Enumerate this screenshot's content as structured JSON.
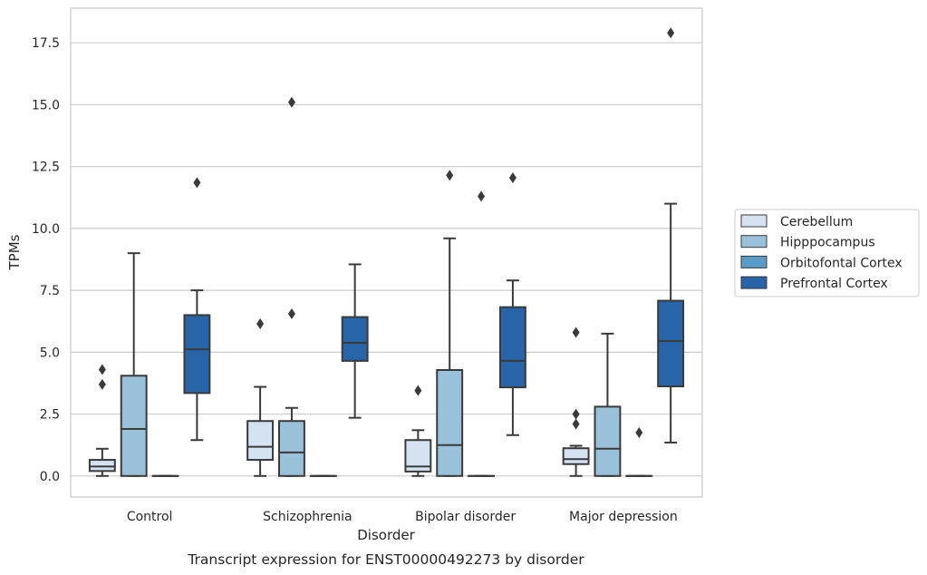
{
  "chart_data": {
    "type": "boxplot",
    "xlabel": "Disorder",
    "ylabel": "TPMs",
    "caption": "Transcript expression for ENST00000492273 by disorder",
    "ylim": [
      -0.85,
      18.9
    ],
    "yticks": [
      0.0,
      2.5,
      5.0,
      7.5,
      10.0,
      12.5,
      15.0,
      17.5
    ],
    "ytick_labels": [
      "0.0",
      "2.5",
      "5.0",
      "7.5",
      "10.0",
      "12.5",
      "15.0",
      "17.5"
    ],
    "grid": "horizontal",
    "legend_placement": "right, outside plot",
    "categories": [
      "Control",
      "Schizophrenia",
      "Bipolar disorder",
      "Major depression"
    ],
    "series": [
      {
        "name": "Cerebellum",
        "color": "#d5e2f1",
        "boxes": [
          {
            "whisker_low": 0.0,
            "q1": 0.2,
            "median": 0.38,
            "q3": 0.65,
            "whisker_high": 1.1,
            "outliers": [
              3.7,
              4.3
            ]
          },
          {
            "whisker_low": 0.0,
            "q1": 0.65,
            "median": 1.18,
            "q3": 2.22,
            "whisker_high": 3.6,
            "outliers": [
              6.15
            ]
          },
          {
            "whisker_low": 0.0,
            "q1": 0.18,
            "median": 0.38,
            "q3": 1.45,
            "whisker_high": 1.85,
            "outliers": [
              3.45
            ]
          },
          {
            "whisker_low": 0.0,
            "q1": 0.48,
            "median": 0.68,
            "q3": 1.12,
            "whisker_high": 1.22,
            "outliers": [
              2.1,
              2.5,
              5.8
            ]
          }
        ]
      },
      {
        "name": "Hipppocampus",
        "color": "#9ac1da",
        "boxes": [
          {
            "whisker_low": 0.0,
            "q1": 0.0,
            "median": 1.9,
            "q3": 4.05,
            "whisker_high": 9.0,
            "outliers": []
          },
          {
            "whisker_low": 0.0,
            "q1": 0.0,
            "median": 0.95,
            "q3": 2.22,
            "whisker_high": 2.75,
            "outliers": [
              6.55,
              15.1
            ]
          },
          {
            "whisker_low": 0.0,
            "q1": 0.0,
            "median": 1.25,
            "q3": 4.28,
            "whisker_high": 9.6,
            "outliers": [
              12.15
            ]
          },
          {
            "whisker_low": 0.0,
            "q1": 0.0,
            "median": 1.1,
            "q3": 2.8,
            "whisker_high": 5.75,
            "outliers": []
          }
        ]
      },
      {
        "name": "Orbitofontal Cortex",
        "color": "#5a9bc7",
        "boxes": [
          {
            "whisker_low": 0.0,
            "q1": 0.0,
            "median": 0.0,
            "q3": 0.0,
            "whisker_high": 0.0,
            "outliers": []
          },
          {
            "whisker_low": 0.0,
            "q1": 0.0,
            "median": 0.0,
            "q3": 0.0,
            "whisker_high": 0.0,
            "outliers": []
          },
          {
            "whisker_low": 0.0,
            "q1": 0.0,
            "median": 0.0,
            "q3": 0.0,
            "whisker_high": 0.0,
            "outliers": [
              11.3
            ]
          },
          {
            "whisker_low": 0.0,
            "q1": 0.0,
            "median": 0.0,
            "q3": 0.0,
            "whisker_high": 0.0,
            "outliers": [
              1.75
            ]
          }
        ]
      },
      {
        "name": "Prefrontal Cortex",
        "color": "#2765a8",
        "boxes": [
          {
            "whisker_low": 1.45,
            "q1": 3.35,
            "median": 5.12,
            "q3": 6.5,
            "whisker_high": 7.5,
            "outliers": [
              11.85
            ]
          },
          {
            "whisker_low": 2.35,
            "q1": 4.65,
            "median": 5.38,
            "q3": 6.42,
            "whisker_high": 8.55,
            "outliers": []
          },
          {
            "whisker_low": 1.65,
            "q1": 3.58,
            "median": 4.65,
            "q3": 6.82,
            "whisker_high": 7.9,
            "outliers": [
              12.05
            ]
          },
          {
            "whisker_low": 1.35,
            "q1": 3.62,
            "median": 5.45,
            "q3": 7.08,
            "whisker_high": 11.0,
            "outliers": [
              17.9
            ]
          }
        ]
      }
    ]
  }
}
